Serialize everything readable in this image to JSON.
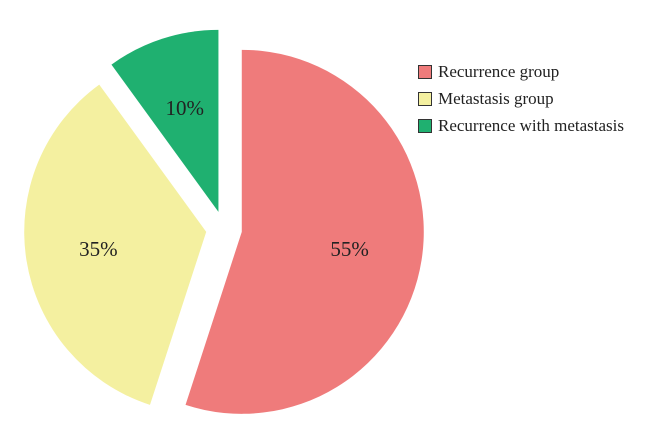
{
  "chart_data": {
    "type": "pie",
    "title": "",
    "categories": [
      "Recurrence group",
      "Metastasis group",
      "Recurrence with metastasis"
    ],
    "values": [
      55,
      35,
      10
    ],
    "value_labels": [
      "55%",
      "35%",
      "10%"
    ],
    "colors": [
      "#ef7b7b",
      "#f4f0a0",
      "#1fb070"
    ],
    "exploded": true,
    "legend_position": "top-right"
  }
}
